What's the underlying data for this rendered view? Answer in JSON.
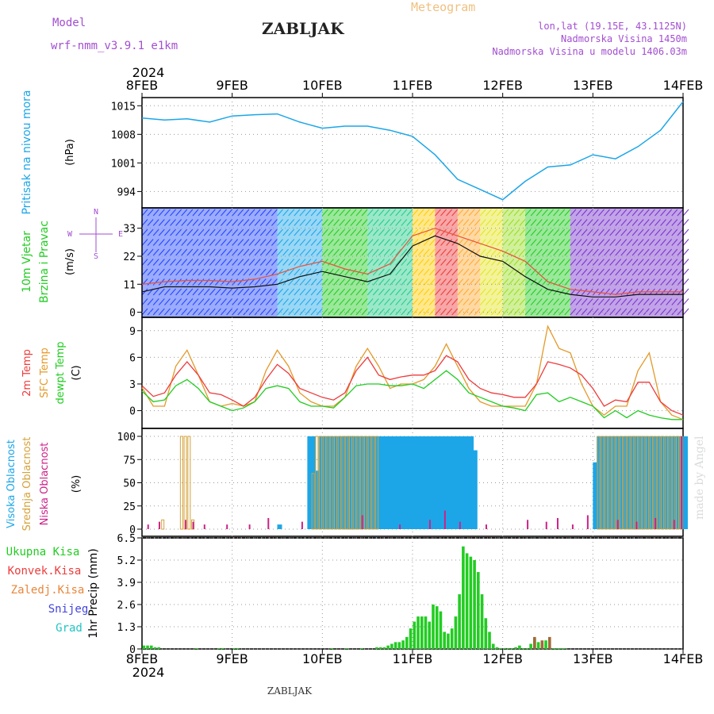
{
  "header": {
    "model_label": "Model",
    "model_name": "wrf-nmm_v3.9.1 e1km",
    "title": "ZABLJAK",
    "meteogram_label": "Meteogram",
    "coords": "lon,lat (19.15E, 43.1125N)",
    "altitude": "Nadmorska Visina 1450m",
    "model_altitude": "Nadmorska Visina u modelu 1406.03m",
    "footer_title": "ZABLJAK",
    "watermark": "made by Angel"
  },
  "colors": {
    "pressure": "#1ca6e8",
    "wind_speed": "#111111",
    "wind_gust": "#e8523a",
    "temp2m": "#ee3b3b",
    "sfc_temp": "#e39a2a",
    "dewpt": "#22cc22",
    "high_cloud": "#1ca6e8",
    "mid_cloud": "#d4a23a",
    "low_cloud": "#cc2288",
    "total_precip": "#22cc22",
    "conv_precip": "#ee3b3b",
    "frz_precip": "#e8863a",
    "snow": "#4444dd",
    "hail": "#22c4c4",
    "wind_label_purple": "#a24ed0"
  },
  "chart_data": [
    {
      "type": "line",
      "title": "",
      "ylabel": "Pritisak na nivou mora",
      "unit": "(hPa)",
      "year": "2024",
      "x_ticks": [
        "8FEB",
        "9FEB",
        "10FEB",
        "11FEB",
        "12FEB",
        "13FEB",
        "14FEB"
      ],
      "y_ticks": [
        "994",
        "1001",
        "1008",
        "1015"
      ],
      "ylim": [
        990,
        1017
      ],
      "x": [
        0,
        6,
        12,
        18,
        24,
        30,
        36,
        42,
        48,
        54,
        60,
        66,
        72,
        78,
        84,
        90,
        96,
        102,
        108,
        114,
        120,
        126,
        132,
        138,
        144
      ],
      "series": [
        {
          "values": [
            1012.0,
            1011.5,
            1011.8,
            1011.0,
            1012.5,
            1012.8,
            1013.0,
            1011.0,
            1009.5,
            1010.0,
            1010.0,
            1009.0,
            1007.5,
            1003.0,
            997.0,
            994.5,
            992.0,
            996.5,
            1000.0,
            1000.5,
            1003.0,
            1002.0,
            1005.0,
            1009.0,
            1016.0
          ]
        }
      ]
    },
    {
      "type": "line",
      "ylabel": "10m Vjetar Brzina i Pravac",
      "unit": "(m/s)",
      "y_ticks": [
        "0",
        "11",
        "22",
        "33"
      ],
      "ylim": [
        -2,
        41
      ],
      "compass": [
        "N",
        "W",
        "E",
        "S"
      ],
      "x": [
        0,
        6,
        12,
        18,
        24,
        30,
        36,
        42,
        48,
        54,
        60,
        66,
        72,
        78,
        84,
        90,
        96,
        102,
        108,
        114,
        120,
        126,
        132,
        138,
        144
      ],
      "series": [
        {
          "values": [
            8,
            10,
            10,
            10,
            9.5,
            10,
            11,
            14,
            16,
            14,
            12,
            15,
            26,
            30,
            27,
            22,
            20,
            14,
            9,
            7,
            6,
            6,
            7,
            7,
            7
          ]
        },
        {
          "values": [
            11,
            12,
            12.5,
            12.5,
            12,
            13,
            15,
            18,
            20,
            17,
            15,
            19,
            30,
            33,
            30,
            27,
            24,
            20,
            12,
            9,
            8,
            7,
            8,
            8,
            8
          ]
        }
      ]
    },
    {
      "type": "line",
      "ylabel": "2m Temp / SFC Temp / dewpt Temp",
      "labels": [
        "2m Temp",
        "SFC Temp",
        "dewpt Temp"
      ],
      "unit": "(C)",
      "y_ticks": [
        "0",
        "3",
        "6",
        "9"
      ],
      "ylim": [
        -2,
        10.5
      ],
      "x": [
        0,
        3,
        6,
        9,
        12,
        15,
        18,
        21,
        24,
        27,
        30,
        33,
        36,
        39,
        42,
        45,
        48,
        51,
        54,
        57,
        60,
        63,
        66,
        69,
        72,
        75,
        78,
        81,
        84,
        87,
        90,
        93,
        96,
        99,
        102,
        105,
        108,
        111,
        114,
        117,
        120,
        123,
        126,
        129,
        132,
        135,
        138,
        141,
        144
      ],
      "series": [
        {
          "name": "2m Temp",
          "values": [
            2.8,
            1.6,
            2.0,
            4.0,
            5.5,
            4.0,
            2.0,
            1.8,
            1.2,
            0.5,
            1.5,
            3.5,
            5.2,
            4.2,
            2.5,
            2.0,
            1.5,
            1.2,
            2.0,
            4.5,
            6.0,
            4.0,
            3.5,
            3.8,
            4.0,
            4.0,
            4.5,
            6.2,
            5.5,
            3.5,
            2.5,
            2.0,
            1.8,
            1.5,
            1.5,
            3.0,
            5.5,
            5.2,
            4.8,
            4.0,
            2.5,
            0.5,
            1.2,
            1.0,
            3.2,
            3.2,
            1.0,
            0.0,
            -0.5
          ]
        },
        {
          "name": "SFC Temp",
          "values": [
            2.6,
            0.5,
            0.5,
            5.0,
            6.8,
            4.0,
            1.0,
            0.5,
            0.8,
            0.5,
            1.0,
            4.5,
            6.8,
            5.0,
            2.0,
            1.0,
            0.5,
            0.5,
            1.5,
            5.0,
            7.0,
            5.0,
            2.5,
            3.0,
            3.0,
            3.5,
            5.0,
            7.5,
            5.0,
            2.5,
            1.0,
            0.5,
            0.5,
            0.5,
            0.5,
            3.0,
            9.5,
            7.0,
            6.5,
            3.0,
            0.5,
            -0.5,
            0.5,
            0.5,
            4.5,
            6.5,
            1.0,
            -0.5,
            -1.0
          ]
        },
        {
          "name": "dewpt Temp",
          "values": [
            2.2,
            1.0,
            1.2,
            2.8,
            3.5,
            2.5,
            1.0,
            0.5,
            0.0,
            0.3,
            1.0,
            2.5,
            2.8,
            2.5,
            1.0,
            0.5,
            0.5,
            0.3,
            1.5,
            2.8,
            3.0,
            3.0,
            2.8,
            2.8,
            3.0,
            2.5,
            3.5,
            4.5,
            3.5,
            2.0,
            1.5,
            1.0,
            0.5,
            0.3,
            0.0,
            1.8,
            2.0,
            1.0,
            1.5,
            1.0,
            0.5,
            -0.8,
            0.0,
            -0.8,
            0.0,
            -0.5,
            -0.8,
            -1.0,
            -1.0
          ]
        }
      ]
    },
    {
      "type": "bar",
      "ylabel": "Visoka Oblacnost / Srednja Oblacnost / Niska Oblacnost",
      "labels": [
        "Visoka Oblacnost",
        "Srednja Oblacnost",
        "Niska Oblacnost"
      ],
      "unit": "(%)",
      "y_ticks": [
        "0",
        "25",
        "50",
        "75",
        "100"
      ],
      "ylim": [
        0,
        100
      ],
      "series": [
        {
          "name": "Visoka Oblacnost",
          "x": [
            32,
            33,
            34,
            35,
            36,
            44,
            45,
            46,
            47,
            48,
            49,
            50,
            51,
            52,
            53,
            54,
            55,
            56,
            57,
            58,
            59,
            60,
            61,
            62,
            63,
            64,
            65,
            66,
            67,
            68,
            69,
            70,
            71,
            72,
            73,
            74,
            75,
            76,
            77,
            78,
            79,
            80,
            81,
            82,
            83,
            84,
            85,
            86,
            87,
            88,
            120,
            121,
            122,
            123,
            124,
            125,
            126,
            127,
            128,
            129,
            130,
            131,
            132,
            133,
            134,
            135,
            136,
            137,
            138,
            139,
            140,
            141,
            142,
            143,
            144
          ],
          "values": [
            0,
            0,
            0,
            0,
            5,
            100,
            100,
            63,
            100,
            100,
            100,
            100,
            100,
            100,
            100,
            100,
            100,
            100,
            100,
            100,
            100,
            100,
            100,
            100,
            100,
            100,
            100,
            100,
            100,
            100,
            100,
            100,
            100,
            100,
            100,
            100,
            100,
            100,
            100,
            100,
            100,
            100,
            100,
            100,
            100,
            100,
            100,
            100,
            100,
            85,
            72,
            100,
            100,
            100,
            100,
            100,
            100,
            100,
            100,
            100,
            100,
            100,
            100,
            100,
            100,
            100,
            100,
            100,
            100,
            100,
            100,
            100,
            100,
            100,
            100
          ]
        },
        {
          "name": "Srednja Oblacnost",
          "x": [
            5,
            10,
            11,
            12,
            13,
            45,
            46,
            47,
            48,
            49,
            50,
            51,
            52,
            53,
            54,
            55,
            56,
            57,
            58,
            59,
            60,
            61,
            62,
            121,
            122,
            123,
            124,
            125,
            126,
            127,
            128,
            129,
            130,
            131,
            132,
            133,
            134,
            135,
            136,
            137,
            138,
            139,
            140,
            141,
            142,
            143
          ],
          "values": [
            10,
            100,
            100,
            100,
            10,
            60,
            100,
            100,
            100,
            100,
            100,
            100,
            100,
            100,
            100,
            100,
            100,
            100,
            100,
            100,
            100,
            100,
            100,
            100,
            100,
            100,
            100,
            100,
            100,
            100,
            100,
            100,
            100,
            100,
            100,
            100,
            100,
            100,
            100,
            100,
            100,
            100,
            100,
            100,
            100,
            100
          ]
        },
        {
          "name": "Niska Oblacnost",
          "x": [
            1,
            4,
            11,
            13,
            16,
            22,
            28,
            33,
            42,
            58,
            68,
            76,
            80,
            84,
            91,
            102,
            107,
            110,
            114,
            118,
            126,
            131,
            136,
            141,
            143
          ],
          "values": [
            5,
            8,
            10,
            8,
            5,
            5,
            5,
            12,
            8,
            15,
            5,
            10,
            20,
            8,
            5,
            10,
            8,
            12,
            5,
            15,
            10,
            8,
            12,
            10,
            100
          ]
        }
      ]
    },
    {
      "type": "bar",
      "ylabel": "1hr Precip",
      "unit": "(mm)",
      "legend": [
        "Ukupna Kisa",
        "Konvek.Kisa",
        "Zaledj.Kisa",
        "Snijeg",
        "Grad"
      ],
      "y_ticks": [
        "0",
        "1.3",
        "2.6",
        "3.9",
        "5.2",
        "6.5"
      ],
      "ylim": [
        0,
        6.5
      ],
      "series": [
        {
          "name": "Ukupna Kisa",
          "x": [
            0,
            1,
            2,
            3,
            4,
            14,
            20,
            21,
            24,
            25,
            50,
            54,
            58,
            62,
            63,
            64,
            65,
            66,
            67,
            68,
            69,
            70,
            71,
            72,
            73,
            74,
            75,
            76,
            77,
            78,
            79,
            80,
            81,
            82,
            83,
            84,
            85,
            86,
            87,
            88,
            89,
            90,
            91,
            92,
            93,
            94,
            95,
            96,
            97,
            98,
            99,
            100,
            101,
            102,
            103,
            104,
            105,
            106,
            107,
            108,
            109,
            110,
            111,
            112
          ],
          "values": [
            0.2,
            0.2,
            0.2,
            0.1,
            0.1,
            0.05,
            0.05,
            0.05,
            0.05,
            0.05,
            0.05,
            0.05,
            0.05,
            0.1,
            0.1,
            0.1,
            0.2,
            0.3,
            0.4,
            0.4,
            0.5,
            0.7,
            1.2,
            1.6,
            1.9,
            1.9,
            1.9,
            1.6,
            2.6,
            2.5,
            2.2,
            1.0,
            0.9,
            1.2,
            1.9,
            3.2,
            6.0,
            5.6,
            5.4,
            5.2,
            4.5,
            3.2,
            1.8,
            1.0,
            0.3,
            0.1,
            0.05,
            0.05,
            0.05,
            0.05,
            0.1,
            0.2,
            0.05,
            0.05,
            0.3,
            0.6,
            0.4,
            0.3,
            0.5,
            0.1,
            0.05,
            0.05,
            0.05,
            0.05
          ]
        },
        {
          "name": "Konvek.Kisa",
          "x": [
            104,
            106,
            108
          ],
          "values": [
            0.7,
            0.5,
            0.7
          ]
        }
      ],
      "x_ticks": [
        "8FEB",
        "9FEB",
        "10FEB",
        "11FEB",
        "12FEB",
        "13FEB",
        "14FEB"
      ],
      "year": "2024"
    }
  ]
}
